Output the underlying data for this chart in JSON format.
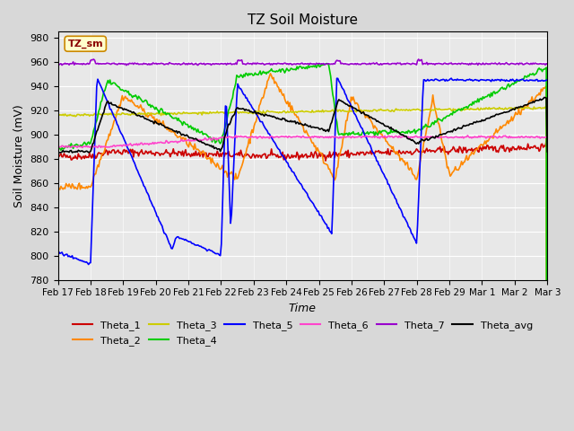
{
  "title": "TZ Soil Moisture",
  "ylabel": "Soil Moisture (mV)",
  "xlabel": "Time",
  "label_box": "TZ_sm",
  "ylim": [
    780,
    985
  ],
  "yticks": [
    780,
    800,
    820,
    840,
    860,
    880,
    900,
    920,
    940,
    960,
    980
  ],
  "date_labels": [
    "Feb 17",
    "Feb 18",
    "Feb 19",
    "Feb 20",
    "Feb 21",
    "Feb 22",
    "Feb 23",
    "Feb 24",
    "Feb 25",
    "Feb 26",
    "Feb 27",
    "Feb 28",
    "Feb 29",
    "Mar 1",
    "Mar 2",
    "Mar 3"
  ],
  "series_colors": {
    "Theta_1": "#cc0000",
    "Theta_2": "#ff8800",
    "Theta_3": "#cccc00",
    "Theta_4": "#00cc00",
    "Theta_5": "#0000ff",
    "Theta_6": "#ff44cc",
    "Theta_7": "#9900cc",
    "Theta_avg": "#000000"
  },
  "plot_bg": "#e8e8e8",
  "grid_color": "#ffffff",
  "n_points": 480
}
